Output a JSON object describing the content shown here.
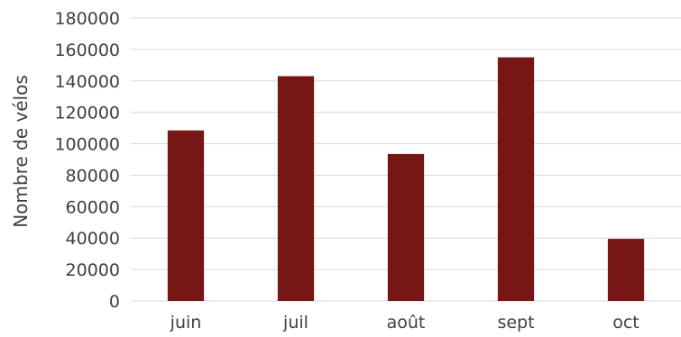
{
  "chart_data": {
    "type": "bar",
    "title": "",
    "xlabel": "",
    "ylabel": "Nombre de vélos",
    "categories": [
      "juin",
      "juil",
      "août",
      "sept",
      "oct"
    ],
    "values": [
      108500,
      143000,
      93500,
      155000,
      39500
    ],
    "ylim": [
      0,
      180000
    ],
    "yticks": [
      0,
      20000,
      40000,
      60000,
      80000,
      100000,
      120000,
      140000,
      160000,
      180000
    ],
    "grid": true,
    "legend": "none",
    "colors": {
      "bar": "#761716",
      "grid": "#d9d9d9",
      "text": "#404040"
    }
  }
}
